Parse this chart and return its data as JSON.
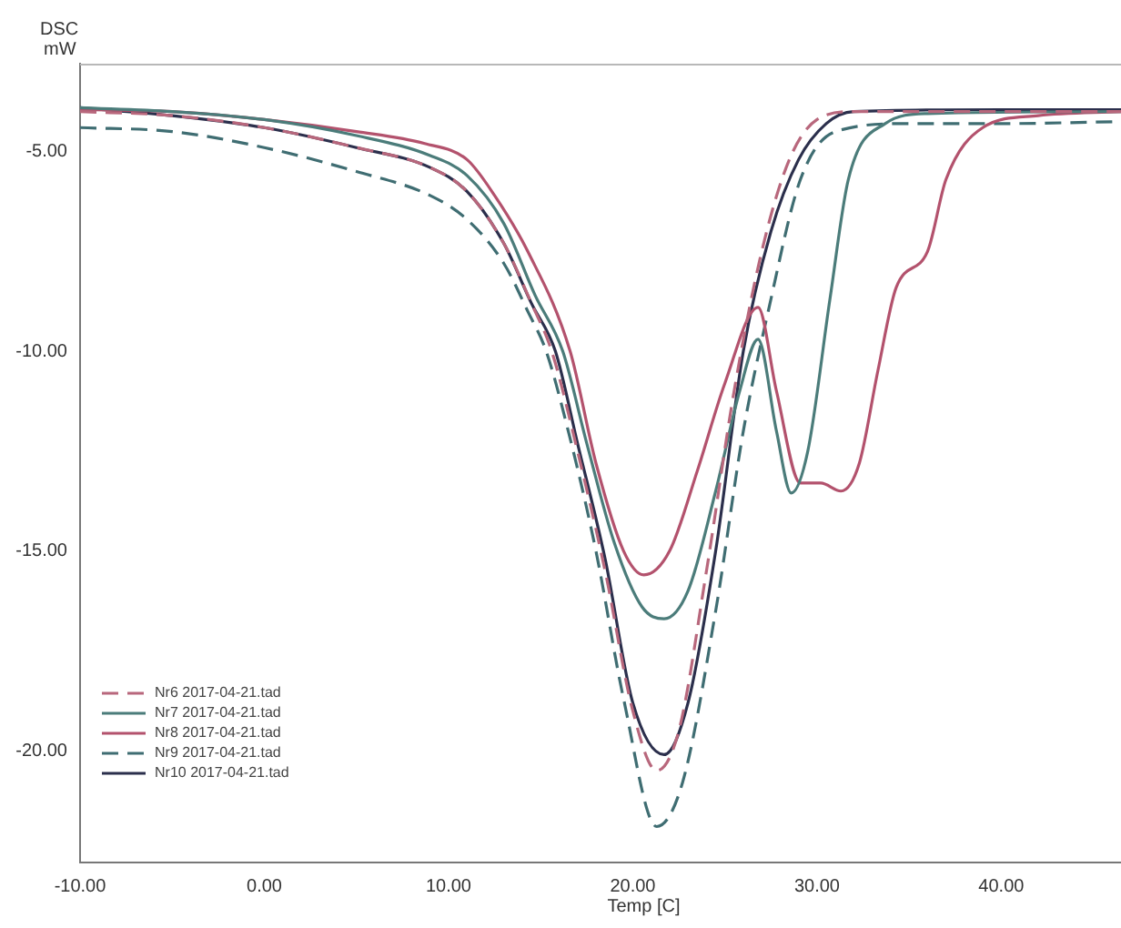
{
  "chart_data": {
    "type": "line",
    "xlabel": "Temp [C]",
    "ylabel": "DSC\nmW",
    "xlim": [
      -10,
      46.5
    ],
    "ylim": [
      -22.8,
      -2.8
    ],
    "xticks": [
      {
        "value": -10,
        "label": "-10.00"
      },
      {
        "value": 0,
        "label": "0.00"
      },
      {
        "value": 10,
        "label": "10.00"
      },
      {
        "value": 20,
        "label": "20.00"
      },
      {
        "value": 30,
        "label": "30.00"
      },
      {
        "value": 40,
        "label": "40.00"
      }
    ],
    "yticks": [
      {
        "value": -5,
        "label": "-5.00"
      },
      {
        "value": -10,
        "label": "-10.00"
      },
      {
        "value": -15,
        "label": "-15.00"
      },
      {
        "value": -20,
        "label": "-20.00"
      }
    ],
    "grid": false,
    "legend": "bottom left",
    "marker": "none",
    "series": [
      {
        "name": "Nr6 2017-04-21.tad",
        "color": "#b8677c",
        "line_style": "dashed",
        "x": [
          -10,
          -5,
          0,
          5,
          9,
          11,
          13,
          14.5,
          15.6,
          17,
          18.5,
          20,
          21.3,
          22.5,
          24,
          25.5,
          27,
          28.5,
          30,
          32,
          40,
          46.5
        ],
        "values": [
          -4.0,
          -4.1,
          -4.4,
          -4.9,
          -5.4,
          -6.0,
          -7.3,
          -8.8,
          -10,
          -12.5,
          -15.5,
          -19,
          -20.5,
          -19.5,
          -15.5,
          -11,
          -7.5,
          -5.2,
          -4.2,
          -4.0,
          -4.0,
          -4.0
        ]
      },
      {
        "name": "Nr7 2017-04-21.tad",
        "color": "#4b7c7a",
        "line_style": "solid",
        "x": [
          -10,
          -5,
          0,
          5,
          9,
          11,
          13,
          14.7,
          16.2,
          17.5,
          19,
          20.5,
          21.7,
          23,
          24.5,
          25.8,
          26.8,
          27.8,
          28.6,
          29.5,
          30.7,
          31.7,
          33.7,
          36,
          46.5
        ],
        "values": [
          -3.9,
          -4.0,
          -4.2,
          -4.6,
          -5.1,
          -5.6,
          -6.8,
          -8.6,
          -10,
          -12.3,
          -14.8,
          -16.4,
          -16.7,
          -16,
          -13.5,
          -11,
          -9.7,
          -12,
          -13.55,
          -12.5,
          -8.7,
          -5.7,
          -4.3,
          -4.05,
          -4.0
        ]
      },
      {
        "name": "Nr8 2017-04-21.tad",
        "color": "#b3526d",
        "line_style": "solid",
        "x": [
          -10,
          -5,
          0,
          5,
          8.7,
          11,
          12.5,
          14.3,
          16.6,
          18,
          19.5,
          20.6,
          22,
          23.5,
          25,
          26.8,
          27.8,
          29.1,
          30.2,
          31.3,
          32.3,
          33.3,
          34.3,
          36,
          37,
          39,
          42,
          46.5
        ],
        "values": [
          -3.95,
          -4.0,
          -4.2,
          -4.5,
          -4.8,
          -5.2,
          -6.1,
          -7.5,
          -10,
          -12.8,
          -15,
          -15.6,
          -15,
          -13,
          -10.8,
          -8.9,
          -11,
          -13.3,
          -13.3,
          -13.5,
          -12.8,
          -10.5,
          -8.4,
          -7.5,
          -5.7,
          -4.4,
          -4.1,
          -4.0
        ]
      },
      {
        "name": "Nr9 2017-04-21.tad",
        "color": "#3f6d72",
        "line_style": "dashed",
        "x": [
          -10,
          -5,
          0,
          5,
          9,
          11,
          13,
          14.3,
          15.3,
          16.5,
          18,
          19.5,
          21.3,
          22.7,
          24.5,
          26,
          27.4,
          29.1,
          31,
          35,
          40,
          46.5
        ],
        "values": [
          -4.4,
          -4.5,
          -4.9,
          -5.5,
          -6.1,
          -6.7,
          -7.8,
          -9,
          -10,
          -12,
          -15,
          -18.7,
          -21.9,
          -20.8,
          -16.5,
          -12,
          -8.9,
          -5.7,
          -4.5,
          -4.3,
          -4.3,
          -4.25
        ]
      },
      {
        "name": "Nr10 2017-04-21.tad",
        "color": "#2b2f4c",
        "line_style": "solid",
        "x": [
          -10,
          -5,
          0,
          5,
          9,
          11,
          13,
          14.5,
          15.8,
          17,
          18.5,
          20,
          21.7,
          23,
          24.5,
          26,
          27.5,
          29,
          30.5,
          32,
          40,
          46.5
        ],
        "values": [
          -3.9,
          -4.1,
          -4.4,
          -4.9,
          -5.4,
          -6.0,
          -7.3,
          -8.8,
          -10,
          -12.3,
          -15.2,
          -18.8,
          -20.1,
          -18.8,
          -15,
          -10,
          -7,
          -5.2,
          -4.3,
          -4.0,
          -3.95,
          -3.95
        ]
      }
    ]
  }
}
